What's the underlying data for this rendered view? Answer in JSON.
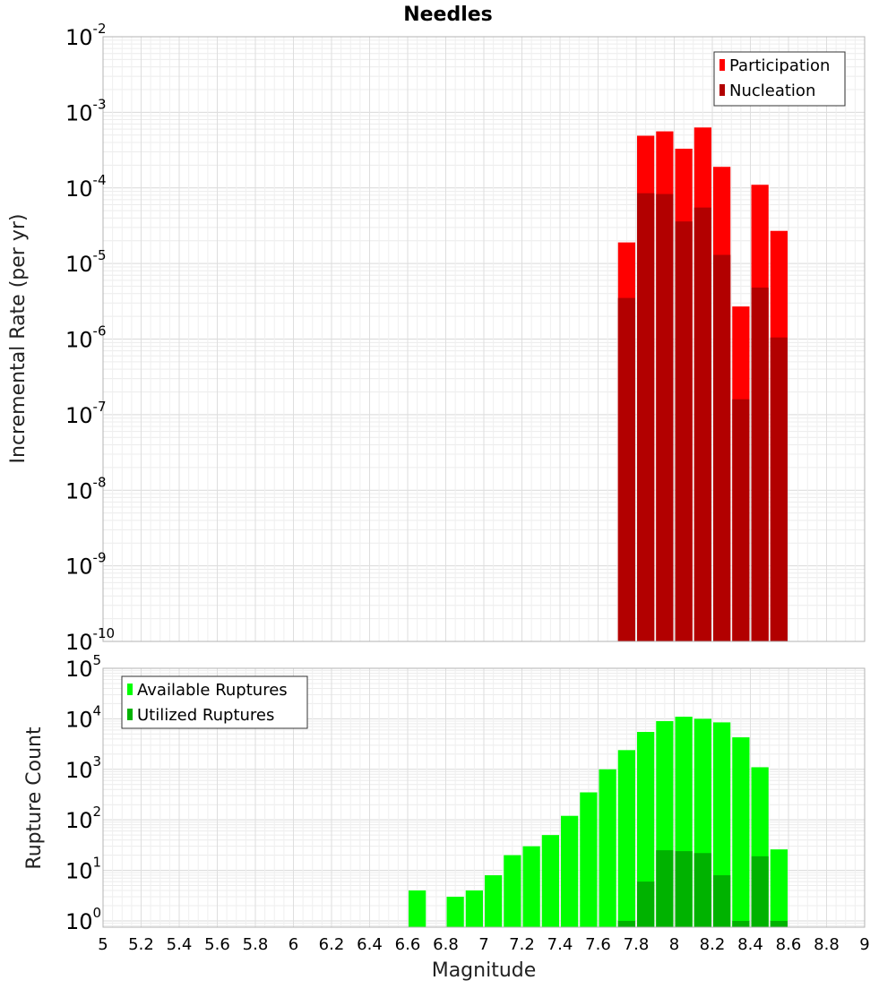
{
  "chart_data": [
    {
      "type": "bar",
      "title": "Needles",
      "xlabel": "",
      "ylabel": "Incremental Rate (per yr)",
      "yscale": "log",
      "ylim": [
        1e-10,
        0.01
      ],
      "xlim": [
        5,
        9
      ],
      "grid": true,
      "legend_position": "top-right",
      "bar_width": 0.1,
      "series": [
        {
          "name": "Participation",
          "color": "#ff0000",
          "x": [
            7.75,
            7.85,
            7.95,
            8.05,
            8.15,
            8.25,
            8.35,
            8.45,
            8.55
          ],
          "values": [
            1.9e-05,
            0.00049,
            0.00056,
            0.00033,
            0.00063,
            0.00019,
            2.7e-06,
            0.00011,
            2.7e-05
          ]
        },
        {
          "name": "Nucleation",
          "color": "#b20000",
          "x": [
            7.75,
            7.85,
            7.95,
            8.05,
            8.15,
            8.25,
            8.35,
            8.45,
            8.55
          ],
          "values": [
            3.5e-06,
            8.5e-05,
            8.3e-05,
            3.6e-05,
            5.5e-05,
            1.3e-05,
            1.6e-07,
            4.8e-06,
            1.05e-06
          ]
        }
      ],
      "y_ticks": [
        {
          "base": "10",
          "exp": "-10"
        },
        {
          "base": "10",
          "exp": "-9"
        },
        {
          "base": "10",
          "exp": "-8"
        },
        {
          "base": "10",
          "exp": "-7"
        },
        {
          "base": "10",
          "exp": "-6"
        },
        {
          "base": "10",
          "exp": "-5"
        },
        {
          "base": "10",
          "exp": "-4"
        },
        {
          "base": "10",
          "exp": "-3"
        },
        {
          "base": "10",
          "exp": "-2"
        }
      ]
    },
    {
      "type": "bar",
      "title": "",
      "xlabel": "Magnitude",
      "ylabel": "Rupture Count",
      "yscale": "log",
      "ylim": [
        0.75,
        100000
      ],
      "xlim": [
        5,
        9
      ],
      "grid": true,
      "legend_position": "top-left",
      "bar_width": 0.1,
      "series": [
        {
          "name": "Available Ruptures",
          "color": "#00ff00",
          "x": [
            6.65,
            6.85,
            6.95,
            7.05,
            7.15,
            7.25,
            7.35,
            7.45,
            7.55,
            7.65,
            7.75,
            7.85,
            7.95,
            8.05,
            8.15,
            8.25,
            8.35,
            8.45,
            8.55
          ],
          "values": [
            4,
            3,
            4,
            8,
            20,
            30,
            50,
            120,
            350,
            1000,
            2400,
            5500,
            9000,
            11000,
            10000,
            8500,
            4300,
            1100,
            26
          ]
        },
        {
          "name": "Utilized Ruptures",
          "color": "#00b200",
          "x": [
            7.75,
            7.85,
            7.95,
            8.05,
            8.15,
            8.25,
            8.35,
            8.45,
            8.55
          ],
          "values": [
            1,
            6,
            25,
            24,
            22,
            8,
            1,
            19,
            1
          ]
        }
      ],
      "y_ticks": [
        {
          "base": "10",
          "exp": "0"
        },
        {
          "base": "10",
          "exp": "1"
        },
        {
          "base": "10",
          "exp": "2"
        },
        {
          "base": "10",
          "exp": "3"
        },
        {
          "base": "10",
          "exp": "4"
        },
        {
          "base": "10",
          "exp": "5"
        }
      ],
      "x_ticks": [
        "5",
        "5.2",
        "5.4",
        "5.6",
        "5.8",
        "6",
        "6.2",
        "6.4",
        "6.6",
        "6.8",
        "7",
        "7.2",
        "7.4",
        "7.6",
        "7.8",
        "8",
        "8.2",
        "8.4",
        "8.6",
        "8.8",
        "9"
      ]
    }
  ]
}
